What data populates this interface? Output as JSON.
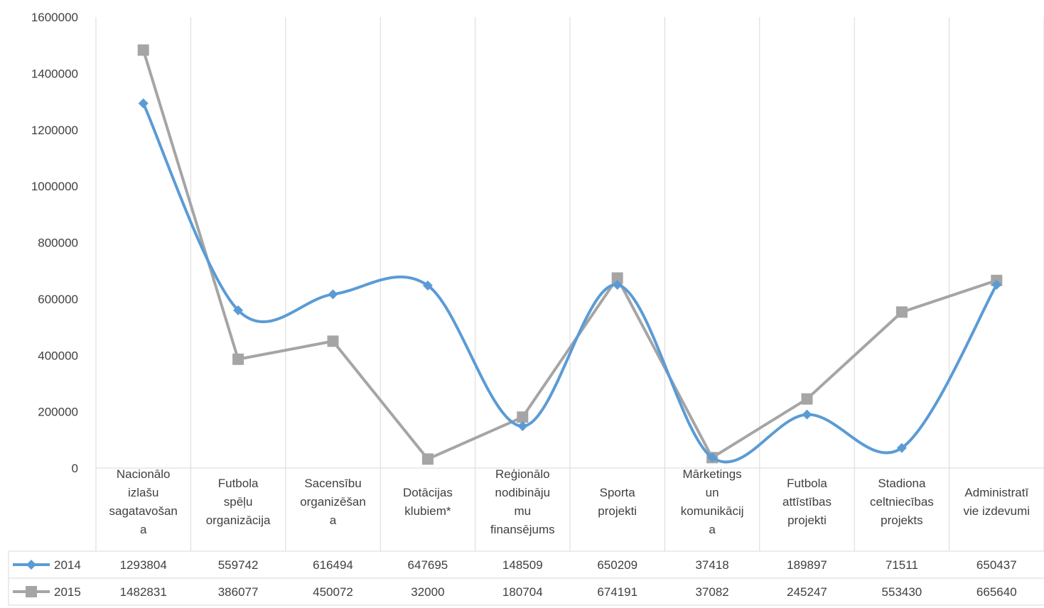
{
  "chart_data": {
    "type": "line",
    "title": "",
    "xlabel": "",
    "ylabel": "",
    "ylim": [
      0,
      1600000
    ],
    "yticks": [
      0,
      200000,
      400000,
      600000,
      800000,
      1000000,
      1200000,
      1400000,
      1600000
    ],
    "ytick_labels": [
      "0",
      "200000",
      "400000",
      "600000",
      "800000",
      "1000000",
      "1200000",
      "1400000",
      "1600000"
    ],
    "grid": "vertical",
    "legend": "data table",
    "categories": [
      [
        "Nacionālo",
        "izlašu",
        "sagatavošan",
        "a"
      ],
      [
        "Futbola",
        "spēļu",
        "organizācija"
      ],
      [
        "Sacensību",
        "organizēšan",
        "a"
      ],
      [
        "Dotācijas",
        "klubiem*"
      ],
      [
        "Reģionālo",
        "nodibināju",
        "mu",
        "finansējums"
      ],
      [
        "Sporta",
        "projekti"
      ],
      [
        "Mārketings",
        "un",
        "komunikācij",
        "a"
      ],
      [
        "Futbola",
        "attīstības",
        "projekti"
      ],
      [
        "Stadiona",
        "celtniecības",
        "projekts"
      ],
      [
        "Administratī",
        "vie izdevumi"
      ]
    ],
    "series": [
      {
        "name": "2014",
        "color": "#5b9bd5",
        "marker": "diamond",
        "smooth": true,
        "values": [
          1293804,
          559742,
          616494,
          647695,
          148509,
          650209,
          37418,
          189897,
          71511,
          650437
        ],
        "value_labels": [
          "1293804",
          "559742",
          "616494",
          "647695",
          "148509",
          "650209",
          "37418",
          "189897",
          "71511",
          "650437"
        ]
      },
      {
        "name": "2015",
        "color": "#a5a5a5",
        "marker": "square",
        "smooth": false,
        "values": [
          1482831,
          386077,
          450072,
          32000,
          180704,
          674191,
          37082,
          245247,
          553430,
          665640
        ],
        "value_labels": [
          "1482831",
          "386077",
          "450072",
          "32000",
          "180704",
          "674191",
          "37082",
          "245247",
          "553430",
          "665640"
        ]
      }
    ]
  }
}
